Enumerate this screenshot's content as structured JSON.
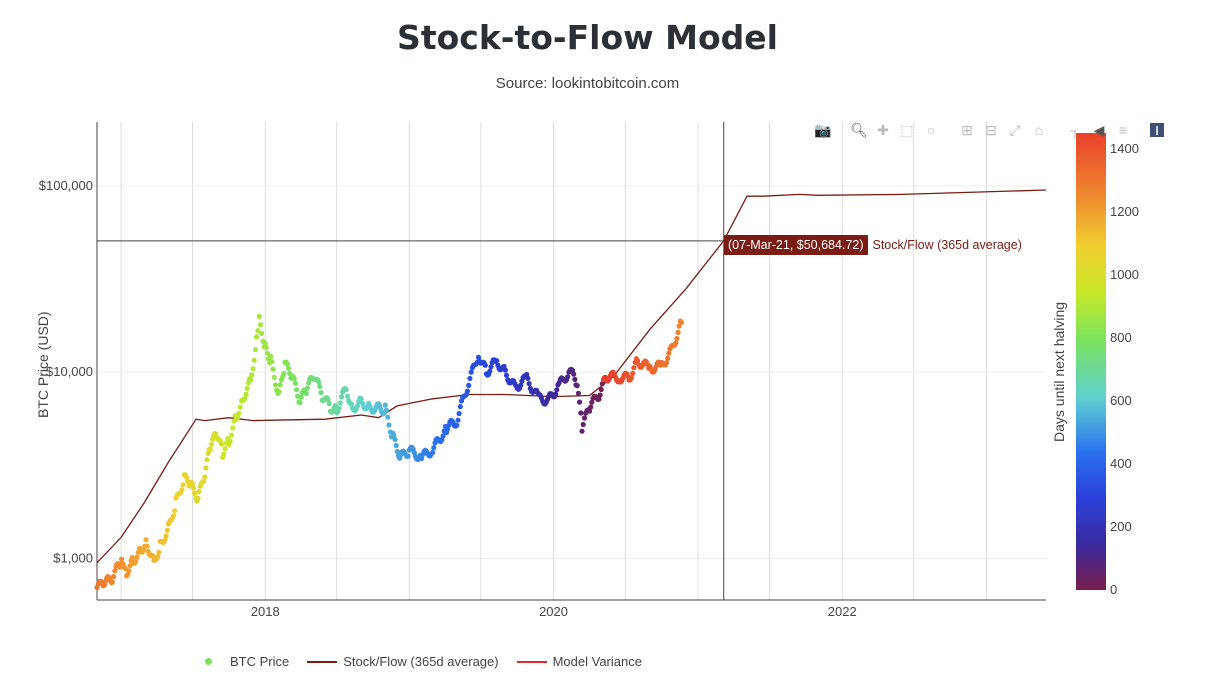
{
  "title": "Stock-to-Flow Model",
  "subtitle": "Source: lookintobitcoin.com",
  "tooltip": {
    "value": "(07-Mar-21, $50,684.72)",
    "series": "Stock/Flow (365d average)"
  },
  "legend": [
    {
      "label": "BTC Price",
      "color": "#7be35a",
      "kind": "dot"
    },
    {
      "label": "Stock/Flow (365d average)",
      "color": "#7a1c14",
      "kind": "line"
    },
    {
      "label": "Model Variance",
      "color": "#e02a2a",
      "kind": "line"
    }
  ],
  "modebar": [
    "camera-icon",
    "zoom-icon",
    "pan-icon",
    "box-select-icon",
    "lasso-icon",
    "zoom-in-icon",
    "zoom-out-icon",
    "autoscale-icon",
    "reset-axes-icon",
    "spike-lines-icon",
    "hover-closest-icon",
    "hover-compare-icon",
    "plotly-logo-icon"
  ],
  "chart_data": {
    "type": "scatter",
    "title": "Stock-to-Flow Model",
    "subtitle": "Source: lookintobitcoin.com",
    "xlabel": "",
    "ylabel": "BTC Price (USD)",
    "y_scale": "log",
    "xlim": [
      "2016-11-01",
      "2023-06-01"
    ],
    "ylim": [
      600,
      220000
    ],
    "x_ticks": [
      {
        "date": "2018-01-01",
        "label": "2018"
      },
      {
        "date": "2020-01-01",
        "label": "2020"
      },
      {
        "date": "2022-01-01",
        "label": "2022"
      }
    ],
    "y_ticks": [
      {
        "value": 1000,
        "label": "$1,000"
      },
      {
        "value": 10000,
        "label": "$10,000"
      },
      {
        "value": 100000,
        "label": "$100,000"
      }
    ],
    "colorbar": {
      "title": "Days until next halving",
      "min": 0,
      "max": 1450,
      "ticks": [
        0,
        200,
        400,
        600,
        800,
        1000,
        1200,
        1400
      ]
    },
    "crosshair": {
      "date": "2021-03-07",
      "value": 50684.72
    },
    "series": [
      {
        "name": "BTC Price",
        "kind": "markers",
        "points": [
          [
            "2016-11-01",
            700,
            1300
          ],
          [
            "2016-11-20",
            740,
            1280
          ],
          [
            "2016-12-10",
            780,
            1260
          ],
          [
            "2016-12-28",
            950,
            1240
          ],
          [
            "2017-01-05",
            1000,
            1230
          ],
          [
            "2017-01-15",
            850,
            1220
          ],
          [
            "2017-02-01",
            980,
            1200
          ],
          [
            "2017-02-20",
            1100,
            1180
          ],
          [
            "2017-03-05",
            1250,
            1170
          ],
          [
            "2017-03-25",
            950,
            1150
          ],
          [
            "2017-04-10",
            1180,
            1130
          ],
          [
            "2017-05-01",
            1450,
            1110
          ],
          [
            "2017-05-20",
            2000,
            1090
          ],
          [
            "2017-06-10",
            2700,
            1070
          ],
          [
            "2017-06-25",
            2500,
            1055
          ],
          [
            "2017-07-15",
            2100,
            1035
          ],
          [
            "2017-08-01",
            2800,
            1020
          ],
          [
            "2017-08-15",
            4000,
            1005
          ],
          [
            "2017-09-01",
            4700,
            985
          ],
          [
            "2017-09-15",
            3700,
            970
          ],
          [
            "2017-10-01",
            4300,
            955
          ],
          [
            "2017-10-20",
            5800,
            935
          ],
          [
            "2017-11-05",
            7200,
            920
          ],
          [
            "2017-11-25",
            9000,
            900
          ],
          [
            "2017-12-10",
            15000,
            885
          ],
          [
            "2017-12-17",
            19000,
            880
          ],
          [
            "2018-01-01",
            13500,
            865
          ],
          [
            "2018-01-15",
            11500,
            850
          ],
          [
            "2018-02-05",
            7500,
            830
          ],
          [
            "2018-02-20",
            11000,
            815
          ],
          [
            "2018-03-10",
            9500,
            795
          ],
          [
            "2018-03-30",
            7000,
            775
          ],
          [
            "2018-04-15",
            8000,
            760
          ],
          [
            "2018-05-05",
            9700,
            740
          ],
          [
            "2018-05-25",
            7500,
            720
          ],
          [
            "2018-06-15",
            6500,
            700
          ],
          [
            "2018-07-01",
            6300,
            685
          ],
          [
            "2018-07-25",
            8200,
            660
          ],
          [
            "2018-08-10",
            6400,
            645
          ],
          [
            "2018-09-01",
            7000,
            625
          ],
          [
            "2018-09-20",
            6500,
            605
          ],
          [
            "2018-10-15",
            6400,
            580
          ],
          [
            "2018-11-01",
            6300,
            565
          ],
          [
            "2018-11-20",
            4500,
            545
          ],
          [
            "2018-12-10",
            3500,
            525
          ],
          [
            "2019-01-01",
            3800,
            505
          ],
          [
            "2019-02-01",
            3500,
            475
          ],
          [
            "2019-03-01",
            3850,
            445
          ],
          [
            "2019-04-05",
            5000,
            410
          ],
          [
            "2019-05-01",
            5500,
            385
          ],
          [
            "2019-05-25",
            8000,
            360
          ],
          [
            "2019-06-25",
            12500,
            330
          ],
          [
            "2019-07-15",
            10000,
            310
          ],
          [
            "2019-08-10",
            11500,
            285
          ],
          [
            "2019-09-01",
            10000,
            265
          ],
          [
            "2019-09-25",
            8300,
            240
          ],
          [
            "2019-10-25",
            9200,
            210
          ],
          [
            "2019-11-25",
            7200,
            180
          ],
          [
            "2019-12-20",
            7100,
            150
          ],
          [
            "2020-01-15",
            8500,
            125
          ],
          [
            "2020-02-12",
            10200,
            95
          ],
          [
            "2020-03-01",
            8600,
            75
          ],
          [
            "2020-03-13",
            5000,
            60
          ],
          [
            "2020-04-01",
            6500,
            40
          ],
          [
            "2020-04-25",
            7600,
            18
          ],
          [
            "2020-05-15",
            9500,
            1455
          ],
          [
            "2020-06-15",
            9400,
            1425
          ],
          [
            "2020-07-10",
            9300,
            1400
          ],
          [
            "2020-08-01",
            11500,
            1380
          ],
          [
            "2020-09-01",
            10500,
            1350
          ],
          [
            "2020-10-01",
            10800,
            1320
          ],
          [
            "2020-10-25",
            13000,
            1295
          ],
          [
            "2020-11-20",
            18500,
            1270
          ]
        ]
      },
      {
        "name": "Stock/Flow (365d average)",
        "kind": "line",
        "color": "#7a1c14",
        "points": [
          [
            "2016-11-01",
            950
          ],
          [
            "2017-01-01",
            1300
          ],
          [
            "2017-03-01",
            2000
          ],
          [
            "2017-05-01",
            3300
          ],
          [
            "2017-07-10",
            5600
          ],
          [
            "2017-08-01",
            5500
          ],
          [
            "2017-10-01",
            5700
          ],
          [
            "2017-12-01",
            5500
          ],
          [
            "2018-06-01",
            5600
          ],
          [
            "2018-09-01",
            5900
          ],
          [
            "2018-10-15",
            5700
          ],
          [
            "2018-12-01",
            6600
          ],
          [
            "2019-03-01",
            7200
          ],
          [
            "2019-06-01",
            7600
          ],
          [
            "2019-09-01",
            7600
          ],
          [
            "2020-01-01",
            7400
          ],
          [
            "2020-04-01",
            7500
          ],
          [
            "2020-06-01",
            9500
          ],
          [
            "2020-09-01",
            17000
          ],
          [
            "2020-12-01",
            28000
          ],
          [
            "2021-03-07",
            50684.72
          ],
          [
            "2021-05-05",
            88000
          ],
          [
            "2021-06-15",
            88000
          ],
          [
            "2021-09-15",
            90000
          ],
          [
            "2021-11-01",
            89000
          ],
          [
            "2022-06-01",
            90000
          ],
          [
            "2023-06-01",
            95000
          ]
        ]
      }
    ]
  }
}
